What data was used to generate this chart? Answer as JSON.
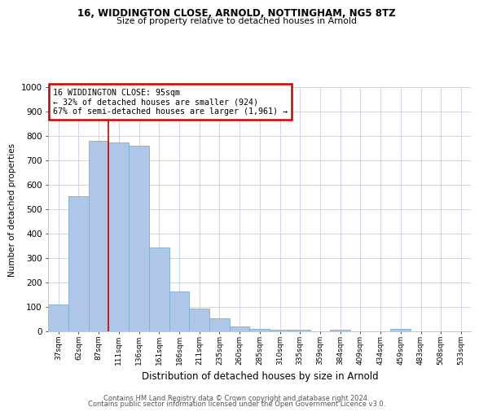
{
  "title1": "16, WIDDINGTON CLOSE, ARNOLD, NOTTINGHAM, NG5 8TZ",
  "title2": "Size of property relative to detached houses in Arnold",
  "xlabel": "Distribution of detached houses by size in Arnold",
  "ylabel": "Number of detached properties",
  "categories": [
    "37sqm",
    "62sqm",
    "87sqm",
    "111sqm",
    "136sqm",
    "161sqm",
    "186sqm",
    "211sqm",
    "235sqm",
    "260sqm",
    "285sqm",
    "310sqm",
    "335sqm",
    "359sqm",
    "384sqm",
    "409sqm",
    "434sqm",
    "459sqm",
    "483sqm",
    "508sqm",
    "533sqm"
  ],
  "values": [
    110,
    555,
    780,
    775,
    760,
    345,
    165,
    95,
    55,
    20,
    10,
    7,
    7,
    0,
    8,
    0,
    0,
    10,
    0,
    0,
    0
  ],
  "bar_color": "#aec6e8",
  "bar_edge_color": "#7aadd4",
  "vline_x": 2.5,
  "annotation_text": "16 WIDDINGTON CLOSE: 95sqm\n← 32% of detached houses are smaller (924)\n67% of semi-detached houses are larger (1,961) →",
  "annotation_box_color": "#ffffff",
  "annotation_box_edge_color": "#cc0000",
  "vline_color": "#cc0000",
  "footer1": "Contains HM Land Registry data © Crown copyright and database right 2024.",
  "footer2": "Contains public sector information licensed under the Open Government Licence v3.0.",
  "ylim": [
    0,
    1000
  ],
  "yticks": [
    0,
    100,
    200,
    300,
    400,
    500,
    600,
    700,
    800,
    900,
    1000
  ],
  "bg_color": "#ffffff",
  "grid_color": "#ccd8ea"
}
